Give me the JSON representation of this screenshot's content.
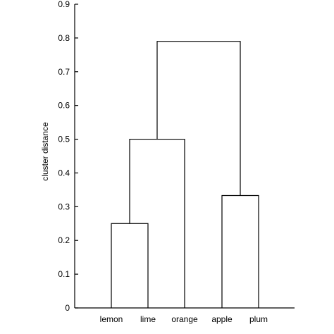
{
  "chart_data": {
    "type": "dendrogram",
    "ylabel": "cluster distance",
    "xlabel": "",
    "ylim": [
      0,
      0.9
    ],
    "yticks": [
      "0",
      "0.1",
      "0.2",
      "0.3",
      "0.4",
      "0.5",
      "0.6",
      "0.7",
      "0.8",
      "0.9"
    ],
    "leaves": [
      "lemon",
      "lime",
      "orange",
      "apple",
      "plum"
    ],
    "merges": [
      {
        "members": [
          "lemon",
          "lime"
        ],
        "distance": 0.25
      },
      {
        "members": [
          "lemon",
          "lime",
          "orange"
        ],
        "distance": 0.5
      },
      {
        "members": [
          "apple",
          "plum"
        ],
        "distance": 0.333
      },
      {
        "members": [
          "lemon",
          "lime",
          "orange",
          "apple",
          "plum"
        ],
        "distance": 0.79
      }
    ],
    "grid": false,
    "legend": "none"
  }
}
